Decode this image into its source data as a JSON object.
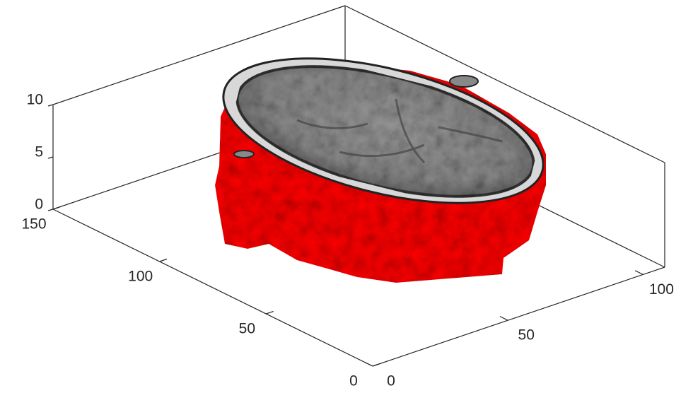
{
  "chart_data": {
    "type": "isosurface",
    "xlim": [
      0,
      108
    ],
    "xticks": [
      0,
      50,
      100
    ],
    "ylim": [
      0,
      150
    ],
    "yticks": [
      0,
      50,
      100,
      150
    ],
    "zlim": [
      0,
      10
    ],
    "zticks": [
      0,
      5,
      10
    ],
    "color": "#ff0000"
  }
}
